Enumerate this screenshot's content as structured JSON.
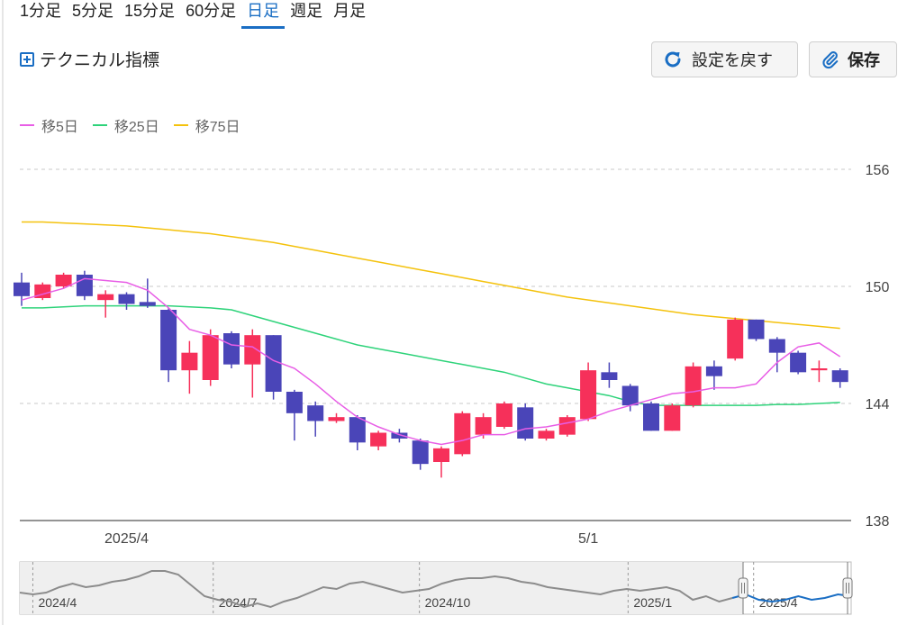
{
  "timeframe_tabs": [
    "1分足",
    "5分足",
    "15分足",
    "60分足",
    "日足",
    "週足",
    "月足"
  ],
  "active_tab": "日足",
  "technical": {
    "label": "テクニカル指標",
    "icon": "plus-square-icon"
  },
  "buttons": {
    "reset": {
      "label": "設定を戻す",
      "icon": "refresh-icon"
    },
    "save": {
      "label": "保存",
      "icon": "paperclip-icon"
    }
  },
  "colors": {
    "accent": "#1a6ec4",
    "up": "#f6305a",
    "down": "#4a45b8",
    "ma5": "#e85ee6",
    "ma25": "#2ed37a",
    "ma75": "#f4c20d"
  },
  "legend": [
    {
      "name": "移5日",
      "color": "#e85ee6"
    },
    {
      "name": "移25日",
      "color": "#2ed37a"
    },
    {
      "name": "移75日",
      "color": "#f4c20d"
    }
  ],
  "chart_data": {
    "type": "candlestick",
    "ylim": [
      138,
      157
    ],
    "yticks": [
      156,
      150,
      144,
      138
    ],
    "grid": true,
    "x_labels": [
      {
        "label": "2025/4",
        "index": 5
      },
      {
        "label": "5/1",
        "index": 27
      }
    ],
    "candles": [
      {
        "o": 150.2,
        "c": 149.5,
        "h": 150.7,
        "l": 149.0
      },
      {
        "o": 149.4,
        "c": 150.1,
        "h": 150.2,
        "l": 149.3
      },
      {
        "o": 150.0,
        "c": 150.6,
        "h": 150.7,
        "l": 149.9
      },
      {
        "o": 150.6,
        "c": 149.5,
        "h": 150.8,
        "l": 149.3
      },
      {
        "o": 149.3,
        "c": 149.6,
        "h": 149.8,
        "l": 148.4
      },
      {
        "o": 149.6,
        "c": 149.1,
        "h": 149.7,
        "l": 148.8
      },
      {
        "o": 149.2,
        "c": 149.0,
        "h": 150.4,
        "l": 148.9
      },
      {
        "o": 148.8,
        "c": 145.7,
        "h": 148.9,
        "l": 145.1
      },
      {
        "o": 145.7,
        "c": 146.6,
        "h": 147.2,
        "l": 144.5
      },
      {
        "o": 145.2,
        "c": 147.5,
        "h": 147.8,
        "l": 144.9
      },
      {
        "o": 147.6,
        "c": 146.0,
        "h": 147.7,
        "l": 145.8
      },
      {
        "o": 146.0,
        "c": 147.5,
        "h": 147.8,
        "l": 144.3
      },
      {
        "o": 147.5,
        "c": 144.6,
        "h": 147.5,
        "l": 144.2
      },
      {
        "o": 144.6,
        "c": 143.5,
        "h": 144.7,
        "l": 142.1
      },
      {
        "o": 143.9,
        "c": 143.1,
        "h": 144.1,
        "l": 142.3
      },
      {
        "o": 143.1,
        "c": 143.3,
        "h": 143.5,
        "l": 143.0
      },
      {
        "o": 143.3,
        "c": 142.0,
        "h": 143.4,
        "l": 141.6
      },
      {
        "o": 141.8,
        "c": 142.5,
        "h": 142.6,
        "l": 141.6
      },
      {
        "o": 142.5,
        "c": 142.2,
        "h": 142.7,
        "l": 142.0
      },
      {
        "o": 142.1,
        "c": 140.9,
        "h": 142.2,
        "l": 140.6
      },
      {
        "o": 141.0,
        "c": 141.7,
        "h": 141.8,
        "l": 140.2
      },
      {
        "o": 141.4,
        "c": 143.5,
        "h": 143.6,
        "l": 141.3
      },
      {
        "o": 142.4,
        "c": 143.3,
        "h": 143.5,
        "l": 142.2
      },
      {
        "o": 142.8,
        "c": 144.0,
        "h": 144.1,
        "l": 142.7
      },
      {
        "o": 143.8,
        "c": 142.2,
        "h": 144.0,
        "l": 142.1
      },
      {
        "o": 142.2,
        "c": 142.6,
        "h": 142.7,
        "l": 142.1
      },
      {
        "o": 142.4,
        "c": 143.3,
        "h": 143.4,
        "l": 142.3
      },
      {
        "o": 143.2,
        "c": 145.7,
        "h": 146.1,
        "l": 143.1
      },
      {
        "o": 145.6,
        "c": 145.2,
        "h": 146.1,
        "l": 144.8
      },
      {
        "o": 144.9,
        "c": 143.9,
        "h": 145.0,
        "l": 143.6
      },
      {
        "o": 144.0,
        "c": 142.6,
        "h": 144.1,
        "l": 142.6
      },
      {
        "o": 142.6,
        "c": 143.9,
        "h": 144.0,
        "l": 142.6
      },
      {
        "o": 143.9,
        "c": 145.9,
        "h": 146.1,
        "l": 143.8
      },
      {
        "o": 145.9,
        "c": 145.4,
        "h": 146.2,
        "l": 144.7
      },
      {
        "o": 146.3,
        "c": 148.3,
        "h": 148.4,
        "l": 146.2
      },
      {
        "o": 148.3,
        "c": 147.3,
        "h": 148.3,
        "l": 147.2
      },
      {
        "o": 147.3,
        "c": 146.6,
        "h": 147.4,
        "l": 145.6
      },
      {
        "o": 146.6,
        "c": 145.6,
        "h": 146.7,
        "l": 145.5
      },
      {
        "o": 145.7,
        "c": 145.8,
        "h": 146.2,
        "l": 145.1
      },
      {
        "o": 145.7,
        "c": 145.1,
        "h": 145.8,
        "l": 144.8
      }
    ],
    "ma5": [
      149.3,
      149.6,
      149.9,
      150.4,
      150.3,
      150.2,
      149.8,
      148.9,
      147.8,
      147.5,
      147.0,
      146.9,
      146.2,
      145.8,
      145.0,
      144.1,
      143.3,
      142.8,
      142.4,
      142.1,
      141.9,
      142.1,
      142.4,
      142.4,
      142.7,
      142.8,
      143.0,
      143.2,
      143.6,
      143.9,
      144.2,
      144.5,
      144.6,
      144.8,
      144.8,
      145.0,
      146.1,
      146.9,
      147.1,
      146.4
    ],
    "ma25": [
      148.9,
      148.9,
      148.95,
      149.0,
      149.0,
      149.0,
      149.0,
      149.0,
      148.95,
      148.9,
      148.8,
      148.5,
      148.2,
      147.9,
      147.6,
      147.3,
      147.0,
      146.8,
      146.6,
      146.4,
      146.2,
      146.0,
      145.8,
      145.6,
      145.3,
      145.0,
      144.8,
      144.6,
      144.4,
      144.1,
      143.9,
      143.9,
      143.9,
      143.9,
      143.9,
      143.9,
      143.95,
      143.95,
      144.0,
      144.05
    ],
    "ma75": [
      153.3,
      153.3,
      153.25,
      153.2,
      153.15,
      153.1,
      153.0,
      152.9,
      152.8,
      152.7,
      152.55,
      152.4,
      152.25,
      152.05,
      151.85,
      151.65,
      151.45,
      151.25,
      151.05,
      150.85,
      150.65,
      150.45,
      150.25,
      150.05,
      149.85,
      149.65,
      149.45,
      149.3,
      149.15,
      149.0,
      148.85,
      148.7,
      148.55,
      148.45,
      148.35,
      148.25,
      148.15,
      148.05,
      147.95,
      147.85
    ]
  },
  "navigator": {
    "labels": [
      "2024/4",
      "2024/7",
      "2024/10",
      "2025/1",
      "2025/4"
    ],
    "values": [
      148,
      147,
      148,
      151,
      153,
      151,
      152,
      154,
      155,
      157,
      160,
      160,
      158,
      152,
      146,
      144,
      143,
      140,
      142,
      140,
      143,
      145,
      148,
      151,
      150,
      153,
      154,
      152,
      150,
      148,
      149,
      150,
      153,
      155,
      156,
      156,
      157,
      156,
      154,
      153,
      151,
      150,
      149,
      148,
      147,
      149,
      150,
      149,
      150,
      151,
      149,
      144,
      146,
      143,
      145,
      147,
      144,
      143,
      144,
      146,
      144,
      145,
      147,
      146
    ],
    "selection_start": 0.87
  }
}
